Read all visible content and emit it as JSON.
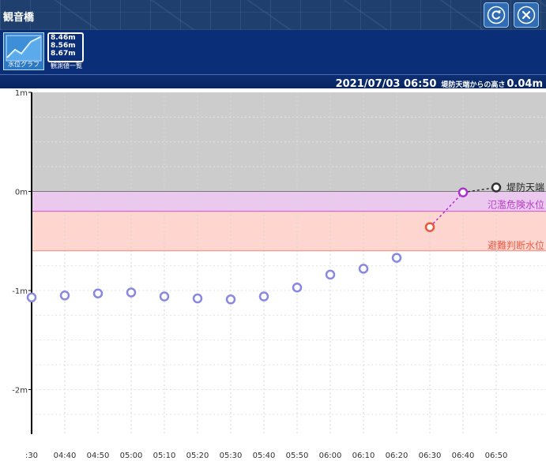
{
  "window": {
    "title": "観音橋"
  },
  "buttons": {
    "refresh_icon": "refresh-icon",
    "close_icon": "close-icon"
  },
  "toolbar": {
    "graph_tab_label": "水位グラフ",
    "list_tab_label": "観測値一覧",
    "list_values": [
      "8.46m",
      "8.56m",
      "8.67m"
    ]
  },
  "status": {
    "datetime": "2021/07/03 06:50",
    "height_label": "堤防天端からの高さ",
    "height_value": "0.04m"
  },
  "chart_data": {
    "type": "scatter",
    "y_tick_labels": [
      "1m",
      "0m",
      "-1m",
      "-2m"
    ],
    "ylim": [
      -2.45,
      1.0
    ],
    "x_tick_labels": [
      ":30",
      "04:40",
      "04:50",
      "05:00",
      "05:10",
      "05:20",
      "05:30",
      "05:40",
      "05:50",
      "06:00",
      "06:10",
      "06:20",
      "06:30",
      "06:40",
      "06:50"
    ],
    "grid": true,
    "series": [
      {
        "points": [
          [
            "04:30",
            -1.07
          ],
          [
            "04:40",
            -1.05
          ],
          [
            "04:50",
            -1.03
          ],
          [
            "05:00",
            -1.02
          ],
          [
            "05:10",
            -1.06
          ],
          [
            "05:20",
            -1.08
          ],
          [
            "05:30",
            -1.09
          ],
          [
            "05:40",
            -1.06
          ],
          [
            "05:50",
            -0.97
          ],
          [
            "06:00",
            -0.84
          ],
          [
            "06:10",
            -0.78
          ],
          [
            "06:20",
            -0.67
          ],
          [
            "06:30",
            -0.36
          ],
          [
            "06:40",
            -0.01
          ],
          [
            "06:50",
            0.04
          ]
        ]
      }
    ],
    "bands": [
      {
        "label": "堤防天端",
        "from": 0.0,
        "to": 1.0,
        "color": "#cccccc"
      },
      {
        "label": "氾濫危険水位",
        "from": -0.2,
        "to": 0.0,
        "color": "#ebc8ee",
        "line_color": "#cc55cc",
        "text_color": "#b73ec4"
      },
      {
        "label": "避難判断水位",
        "from": -0.6,
        "to": -0.2,
        "color": "#ffd5cf",
        "line_color": "#ee8a7a",
        "text_color": "#e8604a"
      }
    ],
    "colors": {
      "normal": "#8888e0",
      "danger": "#aa33cc",
      "caution": "#ee5533",
      "top": "#333333"
    }
  }
}
